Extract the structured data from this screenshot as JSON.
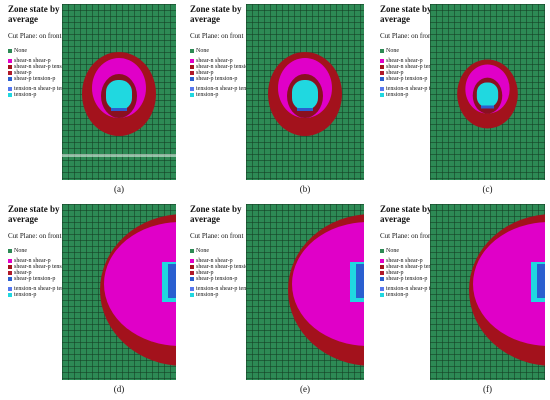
{
  "legend": {
    "title": "Zone state by average",
    "cut_plane": "Cut Plane: on front",
    "items": [
      {
        "label": "None",
        "color": "#2d8a55"
      },
      {
        "label": "shear-n shear-p",
        "color": "#e000c8"
      },
      {
        "label": "shear-n shear-p tension-p",
        "color": "#a3121c"
      },
      {
        "label": "shear-p",
        "color": "#b01828"
      },
      {
        "label": "shear-p tension-p",
        "color": "#2a5fd0"
      },
      {
        "label": "tension-n shear-p tension-p",
        "color": "#5577ee"
      },
      {
        "label": "tension-p",
        "color": "#20d8e0"
      }
    ]
  },
  "panels": [
    {
      "caption": "(a)"
    },
    {
      "caption": "(b)"
    },
    {
      "caption": "(c)"
    },
    {
      "caption": "(d)"
    },
    {
      "caption": "(e)"
    },
    {
      "caption": "(f)"
    }
  ]
}
